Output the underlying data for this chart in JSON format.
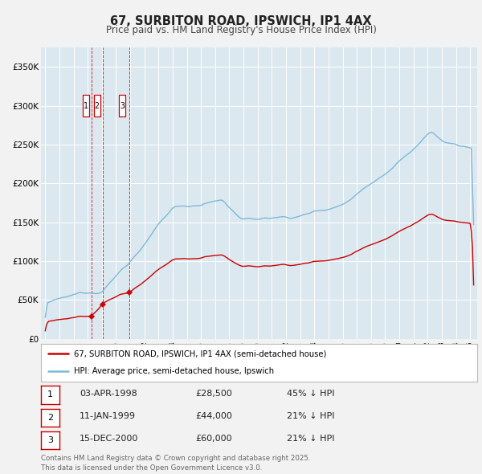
{
  "title": "67, SURBITON ROAD, IPSWICH, IP1 4AX",
  "subtitle": "Price paid vs. HM Land Registry's House Price Index (HPI)",
  "hpi_color": "#7eb8d8",
  "price_color": "#cc0000",
  "fig_bg": "#f5f5f5",
  "plot_bg": "#dce8f0",
  "grid_color": "#ffffff",
  "ylim": [
    0,
    375000
  ],
  "yticks": [
    0,
    50000,
    100000,
    150000,
    200000,
    250000,
    300000,
    350000
  ],
  "ytick_labels": [
    "£0",
    "£50K",
    "£100K",
    "£150K",
    "£200K",
    "£250K",
    "£300K",
    "£350K"
  ],
  "xlim_start": 1994.7,
  "xlim_end": 2025.5,
  "sale_dates": [
    1998.25,
    1999.04,
    2000.96
  ],
  "sale_prices": [
    28500,
    44000,
    60000
  ],
  "sale_labels": [
    "1",
    "2",
    "3"
  ],
  "vline_dates": [
    1998.25,
    1999.04,
    2000.96
  ],
  "legend1_label": "67, SURBITON ROAD, IPSWICH, IP1 4AX (semi-detached house)",
  "legend2_label": "HPI: Average price, semi-detached house, Ipswich",
  "table_rows": [
    {
      "num": "1",
      "date": "03-APR-1998",
      "price": "£28,500",
      "hpi": "45% ↓ HPI"
    },
    {
      "num": "2",
      "date": "11-JAN-1999",
      "price": "£44,000",
      "hpi": "21% ↓ HPI"
    },
    {
      "num": "3",
      "date": "15-DEC-2000",
      "price": "£60,000",
      "hpi": "21% ↓ HPI"
    }
  ],
  "footnote": "Contains HM Land Registry data © Crown copyright and database right 2025.\nThis data is licensed under the Open Government Licence v3.0."
}
